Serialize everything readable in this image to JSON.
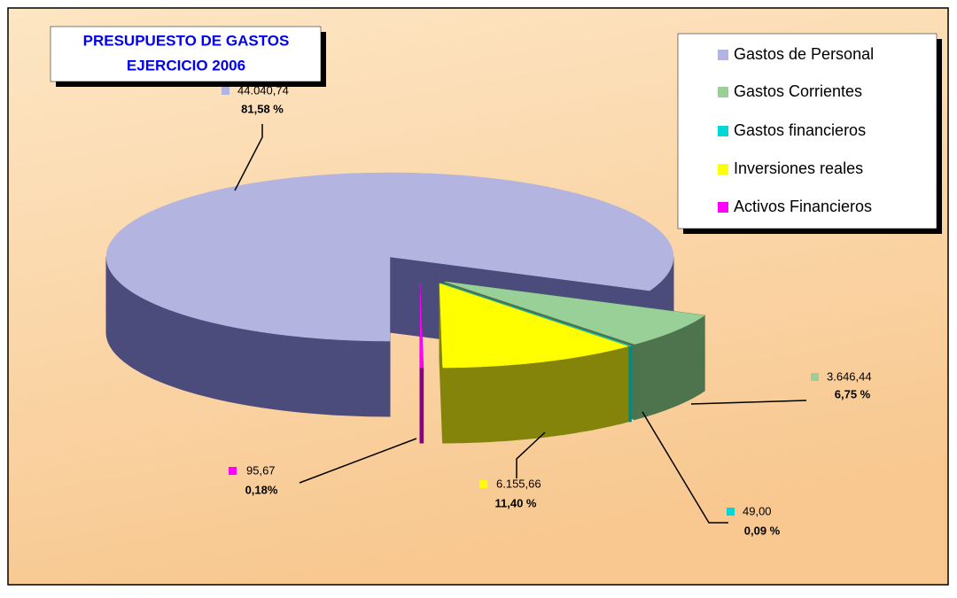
{
  "chart_data": {
    "type": "pie",
    "title": [
      "PRESUPUESTO DE GASTOS",
      "EJERCICIO 2006"
    ],
    "categories": [
      "Gastos de Personal",
      "Gastos Corrientes",
      "Gastos financieros",
      "Inversiones reales",
      "Activos Financieros"
    ],
    "values": [
      44040.74,
      3646.44,
      49.0,
      6155.66,
      95.67
    ],
    "value_labels": [
      "44.040,74",
      "3.646,44",
      "49,00",
      "6.155,66",
      "95,67"
    ],
    "percentages": [
      81.58,
      6.75,
      0.09,
      11.4,
      0.18
    ],
    "percentage_labels": [
      "81,58 %",
      "6,75 %",
      "0,09 %",
      "11,40 %",
      "0,18%"
    ],
    "colors": [
      "#b4b4e0",
      "#98d098",
      "#00d8d8",
      "#ffff00",
      "#ff00ff"
    ],
    "side_colors": [
      "#4c4c7c",
      "#4e744e",
      "#008888",
      "#84840a",
      "#880088"
    ],
    "legend": "top-right"
  }
}
